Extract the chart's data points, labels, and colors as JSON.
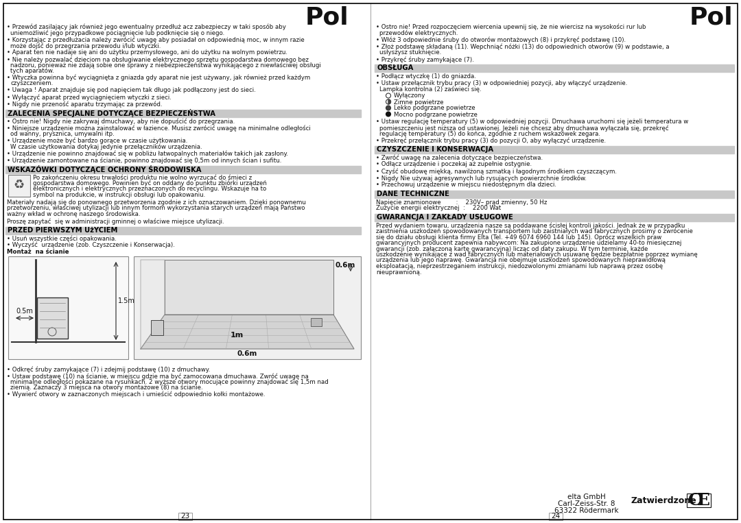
{
  "page_bg": "#ffffff",
  "title_left": "Pol",
  "title_right": "Pol",
  "page_number_left": "23",
  "page_number_right": "24",
  "footer_line1": "elta GmbH",
  "footer_line2": "Carl-Zeiss-Str. 8",
  "footer_line3": "63322 Rödermark",
  "footer_bold": "Zatwierdzone",
  "left_col_sections": [
    "ZALECENIA SPECJALNE DOTYCZĄCE BEZPIECZEŃSTWA",
    "WSKAZÓWKI DOTYCZĄCE OCHRONY ŚRODOWISKA",
    "PRZED PIERWSZYM UżYCIEM"
  ],
  "right_col_sections": [
    "OBSŁUGA",
    "CZYSZCZENIE I KONSERWACJA",
    "DANE TECHNICZNE",
    "GWARANCJA I ZAKŁADY USŁUGOWE"
  ],
  "left_bullets_intro": [
    "• Przewód zasilający jak również  jego ewentualny przedłuż acz zabezpieczy   w taki sposób aby uniemożliwić  jego przypadkowe pociągnięcie lub podknięcie się o niego.",
    "• Korzystając z przedłużacia należy zwrócić  uwagę aby posiadał on odpowiednią moc, w innym razie może dojść do przegrzania przewodu i/lub wtyczki.",
    "• Aparat ten nie nadaje się ani do użytku przemysłowego, ani do użytku na wolnym powietrzu.",
    "• Nie należy pozwalać  dzieciom na obsługiwanie elektrycznego sprzętu gospodarstwa domowego bez nadzoru, ponieważ  nie zdają sobie one sprawy z niebezpieczeństwa wynikającego z niewłaściwej obsługi tych aparatów.",
    "• Wtyczka powinna być  wyciągnięta z gniazda gdy aparat nie jest używany, jak również  przed każdym czyszczeniem.",
    "• Uwaga ! Aparat znajduje się pod napięciem tak długo jak podłączony jest do sieci.",
    "• Wyłączyć  aparat przed wyciągnięciem wtyczki z sieci.",
    "• Nigdy nie przeność  aparatu trzymając za przewód."
  ],
  "left_bullets_zalecenia": [
    "• Ostro nie! Nigdy nie zakrywaj dmuchawy, aby nie dopuścić  do przegrzania.",
    "• Niniejsze urządzenie można zainstalować  w łazience. Musisz zwrócić  uwagę na minimalne odległości od wanny, prysznica, umywalni itp.",
    "• Urządzenie może być  bardzo gorące w czasie użytkowania.\n  W czasie użytkowania dotykaj jedynie przełączników urządzenia.",
    "• Urządzenie nie powinno znajdować  się w pobliżu łatwopalnych materiałów takich jak zasłony.",
    "• Urządzenie zamontowane na ścianie, powinno znajdować  się 0,5m od innych ścian i sufitu."
  ],
  "left_wskazowki_text": "Po zakończeniu okresu trwałości produktu nie wolno wyrzucać  do śmieci z gospodarstwa domowego. Powinien być  on oddany do punktu zbiórki urządzeń elektronicznych i elektrycznych przeznaczonych do recyclingu. Wskazuje na to symbol na produkcie, w instrukcji obsługi lub opakowaniu.",
  "left_materials_text": "Materiały nadają się do ponownego przetworzenia zgodnie z ich oznaczowaniem. Dzięki ponownemu przetworzeniu, właściwej utylizacji lub innym formom wykorzystania starych urządzeń mają Państwo ważny wkład w ochronę naszego środowiska.",
  "left_prosze_text": "Proszę zapytać  się w administracji gminnej o właściwe miejsce utylizacji.",
  "left_przed_bullets": [
    "• Usuń wszystkie części opakowania.",
    "• Wyczyść  urządzenie (zob. Czyszczenie i Konserwacja)."
  ],
  "left_montaz_bold": "Montaż  na ścianie",
  "left_bottom_bullets": [
    "• Odkręć  śruby zamykające (7) i zdejmij podstawę (10) z dmuchawy.",
    "• Ustaw podstawę (10) na ścianie, w miejscu gdzie ma być  zamocowana dmuchawa. Zwróć  uwagę na minimalne odległości pokazane na rysunkach. 2 wyższe otwory mocujące powinny znajdować  się 1,5m nad ziemią. Zaznaczy 3 miejsca na otwory montażowe (8) na ścianie.",
    "• Wywierć  otwory w zaznaczonych miejscach i umieścić  odpowiednio kołki montażowe."
  ],
  "right_intro_bullets": [
    "• Ostro nie! Przed rozpoczęciem wiercenia upewnij się,  że nie wiercisz na wysokości rur lub przewodów elektrycznych.",
    "• Włóż 3 odpowiednie śruby do otworów montażowych (8) i przykręć  podstawę (10).",
    "• Złoż podstawę składaną (11). Wepchniąć nóżki (13) do odpowiednich otworów (9) w podstawie, a  usłyszysz stuknięcie.",
    "• Przykręć  śruby zamykające (7)."
  ],
  "right_obsluga_bullets": [
    "• Podłącz wtyczkę (1) do gniazda.",
    "• Ustaw przełącznik trybu pracy (3) w odpowiedniej pozycji, aby włączyć  urządzenie.\n  Lampka kontrolna (2) zaświeci się."
  ],
  "obsluga_indicator_items": [
    [
      "empty_circle",
      "Wyłączony"
    ],
    [
      "half_circle",
      "Zimne powietrze"
    ],
    [
      "filled_circle",
      "Lekko podgrzane powietrze"
    ],
    [
      "full_circle",
      "Mocno podgrzane powietrze"
    ]
  ],
  "right_obsluga_bullets2": [
    "• Ustaw regulację temperatury (5) w odpowiedniej pozycji. Dmuchawa uruchomi się  jeżeli temperatura w pomieszczeniu jest niższa od ustawionej. Jeżeli nie chcesz aby dmuchawa wyłączała się, przekręć  regulację temperatury (5) do końca, zgodnie z ruchem wskazówek zegara.",
    "• Przekręć  przełącznik trybu pracy (3) do pozycji O, aby wyłączyć  urządzenie."
  ],
  "right_czyszczenie_bullets": [
    "• Zwróć  uwagę na zalecenia dotyczące bezpieczeństwa.",
    "• Odłącz urządzenie i poczekaj aż  zupełnie ostygnie.",
    "• Czyść  obudowę miękką, nawilżoną szmatką i łagodnym środkiem czyszczącym.",
    "• Nigdy Nie używaj agresywnych lub rysujących powierzchnie środków.",
    "• Przechowuj urządzenie w miejscu niedostępnym dla dzieci."
  ],
  "right_dane_tech": [
    "Napięcie znamionowe        :    230V– prąd zmienny, 50 Hz",
    "Zużycie energii elektrycznej  :    2200 Wat"
  ],
  "right_gwarancja_text": "Przed wydaniem towaru, urządzenia nasze są poddawane ścisłej kontroli jakości. Jednak  że w przypadku zaistnienia uszkodzeń spowodowanych transportem lub zaistniałych wad fabrycznych prosimy o zwrócenie się do działu obsługi klienta firmy Elta (Tel. +49 6074 6960 144 lub 145). Oprócz wszelkich praw gwarancyjnych producent zapewnia nabywcom: Na zakupione urządzenie udzielamy 40-to miesięcznej gwarancji (zob. załączoną kartę gwarancyjną) licząc od daty zakupu. W tym terminie, każde uszkodzenie wynikające z wad fabrycznych lub materiałowych usuwanę będzie bezpłatnie poprzez wymianę urządzenia lub jego naprawę. Gwarancja nie obejmuje uszkodzeń spowodowanych nieprawidłową eksploatacją, nieprzestrzeganiem instrukcji, niedozwolonymi zmianami lub naprawą przez osobę nieuprawnioną.",
  "ts": 6.2,
  "lh": 8.5
}
